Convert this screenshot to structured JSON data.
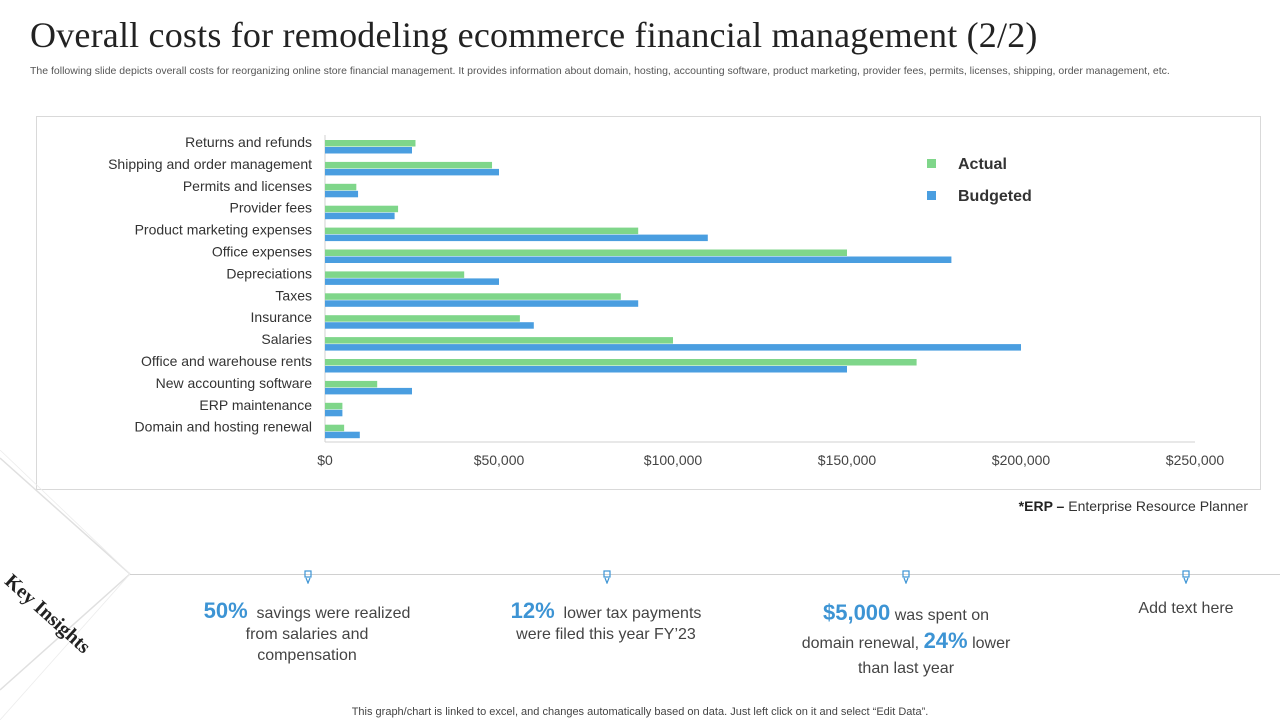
{
  "title": "Overall costs for remodeling ecommerce financial management (2/2)",
  "subtitle": "The following slide depicts overall costs for reorganizing online store financial management. It provides information about domain, hosting, accounting software, product marketing, provider fees, permits, licenses, shipping, order management, etc.",
  "chart_data": {
    "type": "bar",
    "orientation": "horizontal",
    "categories": [
      "Returns and refunds",
      "Shipping and order management",
      "Permits and licenses",
      "Provider fees",
      "Product marketing expenses",
      "Office expenses",
      "Depreciations",
      "Taxes",
      "Insurance",
      "Salaries",
      "Office and warehouse rents",
      "New accounting software",
      "ERP maintenance",
      "Domain and hosting renewal"
    ],
    "series": [
      {
        "name": "Actual",
        "color": "#7fd68a",
        "values": [
          26000,
          48000,
          9000,
          21000,
          90000,
          150000,
          40000,
          85000,
          56000,
          100000,
          170000,
          15000,
          5000,
          5500
        ]
      },
      {
        "name": "Budgeted",
        "color": "#4a9ee0",
        "values": [
          25000,
          50000,
          9500,
          20000,
          110000,
          180000,
          50000,
          90000,
          60000,
          200000,
          150000,
          25000,
          5000,
          10000
        ]
      }
    ],
    "xlim": [
      0,
      250000
    ],
    "x_ticks": [
      "$0",
      "$50,000",
      "$100,000",
      "$150,000",
      "$200,000",
      "$250,000"
    ],
    "legend_position": "top-right",
    "gridlines": false
  },
  "footnote": {
    "abbr": "*ERP –",
    "text": "Enterprise Resource Planner"
  },
  "key_insights_label": "Key Insights",
  "insights": [
    {
      "highlight": "50%",
      "text": "savings were realized from salaries and compensation"
    },
    {
      "highlight": "12%",
      "text": "lower tax payments were filed this year FY’23"
    },
    {
      "highlight": "$5,000",
      "text_a": "was spent on domain renewal,",
      "highlight2": "24%",
      "text_b": "lower than last year"
    },
    {
      "text": "Add text here"
    }
  ],
  "disclaimer": "This graph/chart is linked to excel,  and changes automatically based on data. Just left click on it and select “Edit Data”."
}
